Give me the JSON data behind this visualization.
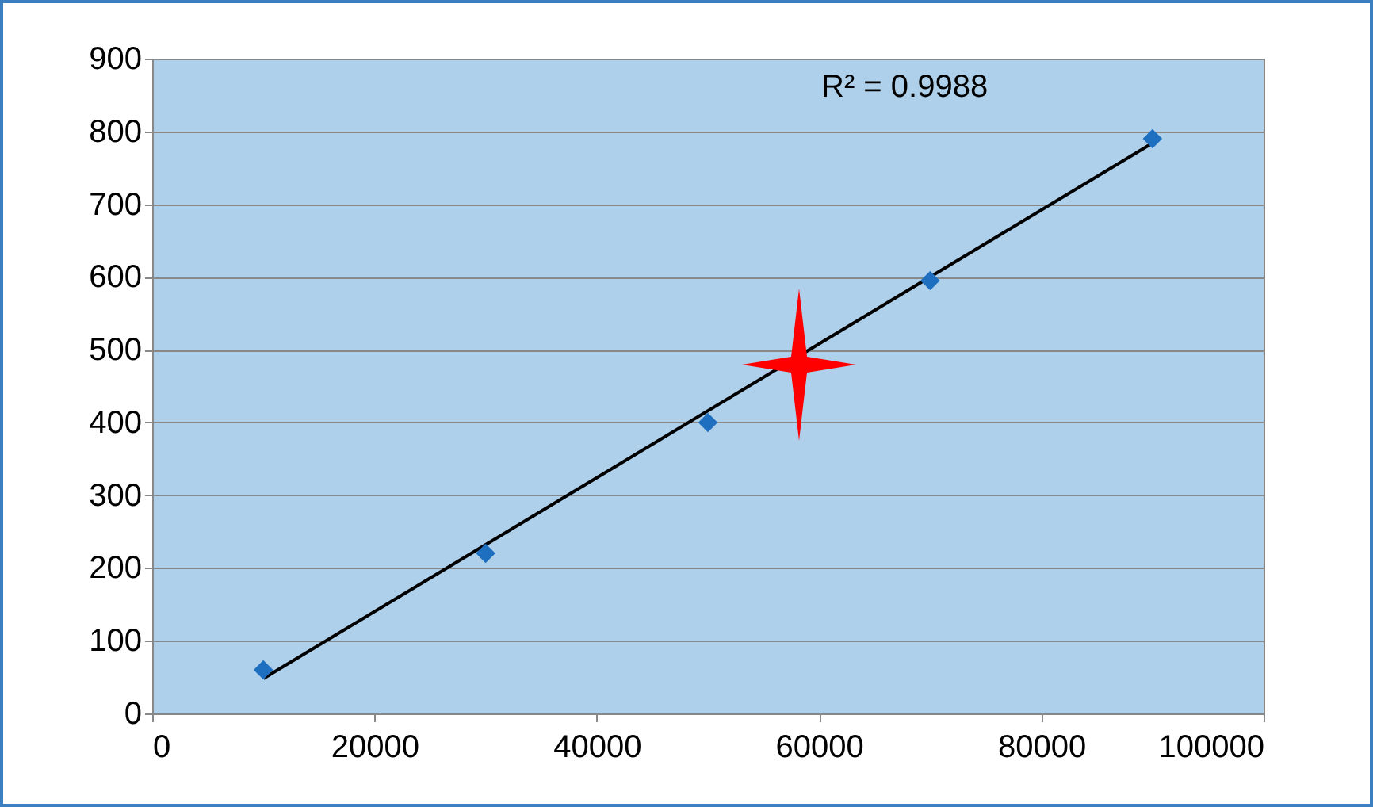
{
  "chart_data": {
    "type": "scatter",
    "series": [
      {
        "type": "line",
        "color": "#000000",
        "x": [
          10000,
          90000
        ],
        "values": [
          48,
          784
        ]
      },
      {
        "color": "#1f6fc0",
        "marker": "diamond",
        "x": [
          10000,
          30000,
          50000,
          70000,
          90000
        ],
        "values": [
          60,
          220,
          400,
          595,
          790
        ]
      }
    ],
    "xlim": [
      0,
      100000
    ],
    "xticks": [
      0,
      20000,
      40000,
      60000,
      80000,
      100000
    ],
    "ylim": [
      0,
      900
    ],
    "yticks": [
      0,
      100,
      200,
      300,
      400,
      500,
      600,
      700,
      800,
      900
    ],
    "grid": "y",
    "annotations": [
      "R² = 0.9988"
    ]
  }
}
